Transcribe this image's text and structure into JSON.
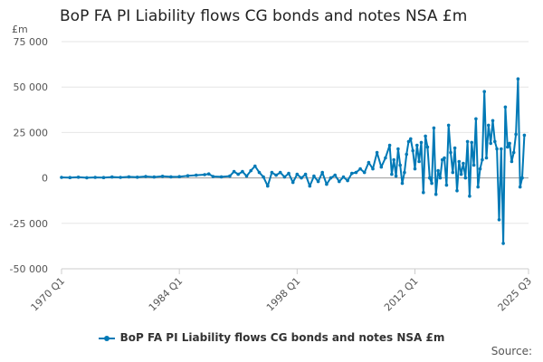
{
  "chart_data": {
    "type": "line",
    "title": "BoP FA PI Liability flows CG bonds and notes NSA £m",
    "ylabel": "£m",
    "xlabel": "",
    "ylim": [
      -50000,
      75000
    ],
    "yticks": [
      75000,
      50000,
      25000,
      0,
      -25000,
      -50000
    ],
    "ytick_labels": [
      "75 000",
      "50 000",
      "25 000",
      "0",
      "-25 000",
      "-50 000"
    ],
    "x_range": [
      "1970 Q1",
      "2025 Q3"
    ],
    "xticks": [
      "1970 Q1",
      "1984 Q1",
      "1998 Q1",
      "2012 Q1",
      "2025 Q3"
    ],
    "series": [
      {
        "name": "BoP FA PI Liability flows CG bonds and notes NSA £m",
        "color": "#0079b6",
        "points": [
          [
            1970.0,
            300
          ],
          [
            1971.0,
            200
          ],
          [
            1972.0,
            400
          ],
          [
            1973.0,
            100
          ],
          [
            1974.0,
            300
          ],
          [
            1975.0,
            200
          ],
          [
            1976.0,
            500
          ],
          [
            1977.0,
            300
          ],
          [
            1978.0,
            600
          ],
          [
            1979.0,
            400
          ],
          [
            1980.0,
            800
          ],
          [
            1981.0,
            500
          ],
          [
            1982.0,
            900
          ],
          [
            1983.0,
            600
          ],
          [
            1984.0,
            700
          ],
          [
            1985.0,
            1200
          ],
          [
            1986.0,
            1500
          ],
          [
            1987.0,
            1800
          ],
          [
            1987.5,
            2200
          ],
          [
            1988.0,
            800
          ],
          [
            1989.0,
            600
          ],
          [
            1990.0,
            1000
          ],
          [
            1990.5,
            3500
          ],
          [
            1991.0,
            2000
          ],
          [
            1991.5,
            3500
          ],
          [
            1992.0,
            1000
          ],
          [
            1992.5,
            4000
          ],
          [
            1993.0,
            6500
          ],
          [
            1993.5,
            3000
          ],
          [
            1994.0,
            500
          ],
          [
            1994.5,
            -4500
          ],
          [
            1995.0,
            3000
          ],
          [
            1995.5,
            1500
          ],
          [
            1996.0,
            3000
          ],
          [
            1996.5,
            500
          ],
          [
            1997.0,
            2500
          ],
          [
            1997.5,
            -2500
          ],
          [
            1998.0,
            2000
          ],
          [
            1998.5,
            0
          ],
          [
            1999.0,
            2000
          ],
          [
            1999.5,
            -4500
          ],
          [
            2000.0,
            1000
          ],
          [
            2000.5,
            -2000
          ],
          [
            2001.0,
            3000
          ],
          [
            2001.5,
            -3500
          ],
          [
            2002.0,
            0
          ],
          [
            2002.5,
            1500
          ],
          [
            2003.0,
            -2000
          ],
          [
            2003.5,
            500
          ],
          [
            2004.0,
            -1500
          ],
          [
            2004.5,
            2500
          ],
          [
            2005.0,
            3000
          ],
          [
            2005.5,
            5000
          ],
          [
            2006.0,
            3000
          ],
          [
            2006.5,
            8500
          ],
          [
            2007.0,
            5000
          ],
          [
            2007.5,
            14000
          ],
          [
            2008.0,
            6000
          ],
          [
            2008.5,
            11000
          ],
          [
            2009.0,
            18000
          ],
          [
            2009.25,
            2000
          ],
          [
            2009.5,
            10000
          ],
          [
            2009.75,
            1000
          ],
          [
            2010.0,
            16000
          ],
          [
            2010.25,
            7000
          ],
          [
            2010.5,
            -3000
          ],
          [
            2010.75,
            3000
          ],
          [
            2011.0,
            13000
          ],
          [
            2011.25,
            20000
          ],
          [
            2011.5,
            21500
          ],
          [
            2011.75,
            15000
          ],
          [
            2012.0,
            5000
          ],
          [
            2012.25,
            18000
          ],
          [
            2012.5,
            9000
          ],
          [
            2012.75,
            19500
          ],
          [
            2013.0,
            -8000
          ],
          [
            2013.25,
            23000
          ],
          [
            2013.5,
            17000
          ],
          [
            2013.75,
            0
          ],
          [
            2014.0,
            -3000
          ],
          [
            2014.25,
            27500
          ],
          [
            2014.5,
            -9000
          ],
          [
            2014.75,
            4000
          ],
          [
            2015.0,
            0
          ],
          [
            2015.25,
            10000
          ],
          [
            2015.5,
            11000
          ],
          [
            2015.75,
            -4000
          ],
          [
            2016.0,
            29000
          ],
          [
            2016.25,
            14000
          ],
          [
            2016.5,
            3000
          ],
          [
            2016.75,
            16500
          ],
          [
            2017.0,
            -7000
          ],
          [
            2017.25,
            9000
          ],
          [
            2017.5,
            2000
          ],
          [
            2017.75,
            8000
          ],
          [
            2018.0,
            0
          ],
          [
            2018.25,
            20000
          ],
          [
            2018.5,
            -10000
          ],
          [
            2018.75,
            19500
          ],
          [
            2019.0,
            7000
          ],
          [
            2019.25,
            32500
          ],
          [
            2019.5,
            -5000
          ],
          [
            2019.75,
            5000
          ],
          [
            2020.0,
            10000
          ],
          [
            2020.25,
            47500
          ],
          [
            2020.5,
            11000
          ],
          [
            2020.75,
            29000
          ],
          [
            2021.0,
            19000
          ],
          [
            2021.25,
            31500
          ],
          [
            2021.5,
            20000
          ],
          [
            2021.75,
            16000
          ],
          [
            2022.0,
            -23000
          ],
          [
            2022.25,
            16000
          ],
          [
            2022.5,
            -36000
          ],
          [
            2022.75,
            39000
          ],
          [
            2023.0,
            17000
          ],
          [
            2023.25,
            19000
          ],
          [
            2023.5,
            9000
          ],
          [
            2023.75,
            14000
          ],
          [
            2024.0,
            24000
          ],
          [
            2024.25,
            54500
          ],
          [
            2024.5,
            -5000
          ],
          [
            2024.75,
            0
          ],
          [
            2025.0,
            23500
          ]
        ]
      }
    ]
  },
  "legend": {
    "label": "BoP FA PI Liability flows CG bonds and notes NSA £m"
  },
  "footer": {
    "source_label": "Source:"
  }
}
